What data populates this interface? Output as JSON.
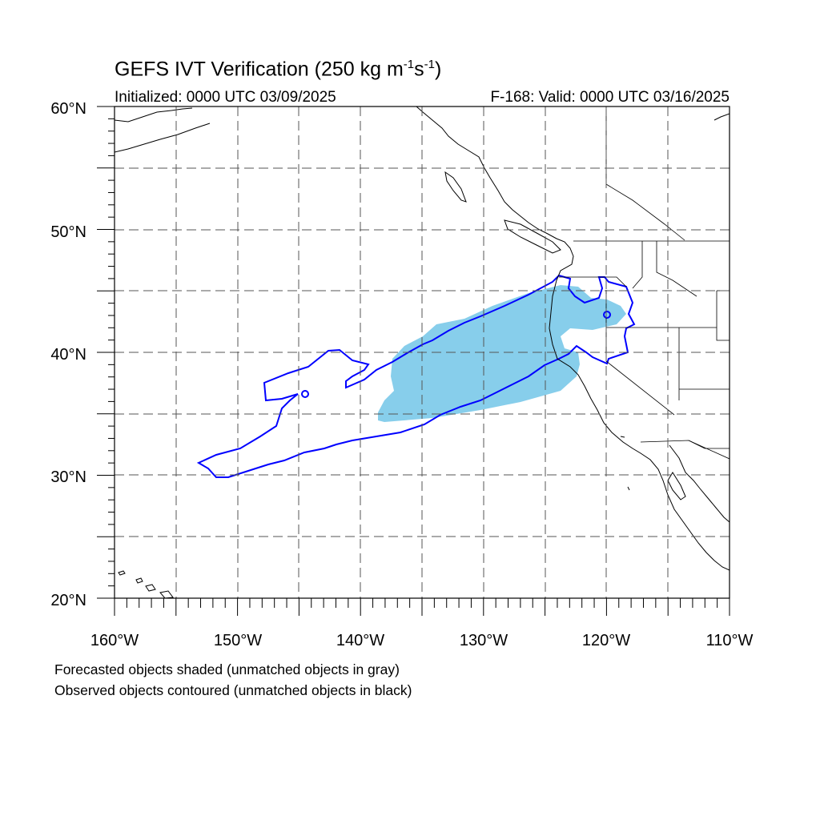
{
  "header": {
    "title_main": "GEFS IVT Verification (250 kg m",
    "title_exp1": "-1",
    "title_mid": "s",
    "title_exp2": "-1",
    "title_end": ")",
    "initialized": "Initialized: 0000 UTC 03/09/2025",
    "valid": "F-168: Valid: 0000 UTC 03/16/2025"
  },
  "legend": {
    "line1": "Forecasted objects shaded (unmatched objects in gray)",
    "line2": "Observed objects contoured (unmatched objects in black)"
  },
  "map": {
    "projection": "cylindrical equidistant",
    "lon_range": [
      -160,
      -110
    ],
    "lat_range": [
      20,
      60
    ],
    "grid": "dashed every 5 degrees",
    "lat_labels": [
      "20°N",
      "30°N",
      "40°N",
      "50°N",
      "60°N"
    ],
    "lon_labels": [
      "160°W",
      "150°W",
      "140°W",
      "130°W",
      "120°W",
      "110°W"
    ],
    "colors": {
      "forecast_fill": "#87ceeb",
      "observed_contour": "#0000ff",
      "coastline": "#000000",
      "grid": "#555555"
    }
  }
}
